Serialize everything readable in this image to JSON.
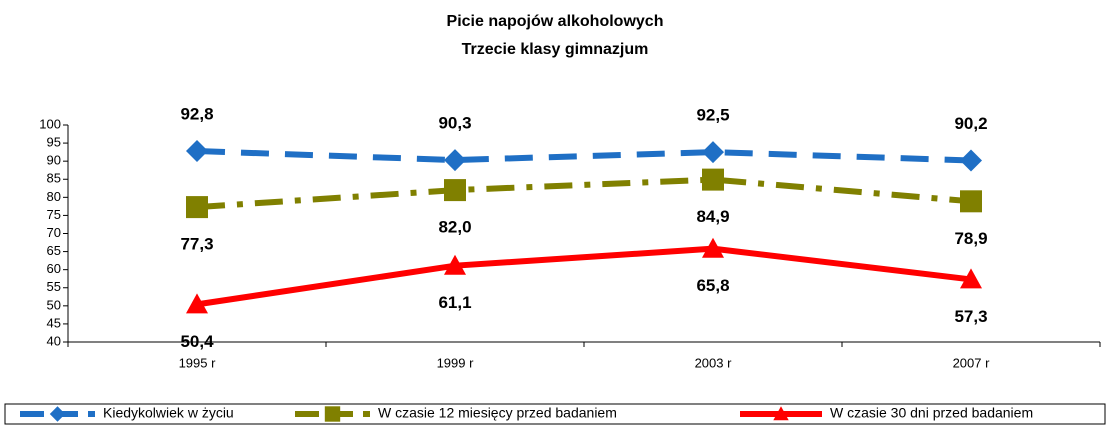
{
  "chart_data": {
    "type": "line",
    "title": "Picie napojów alkoholowych",
    "subtitle": "Trzecie klasy gimnazjum",
    "categories": [
      "1995 r",
      "1999 r",
      "2003 r",
      "2007 r"
    ],
    "ylim": [
      40,
      100
    ],
    "yticks": [
      40,
      45,
      50,
      55,
      60,
      65,
      70,
      75,
      80,
      85,
      90,
      95,
      100
    ],
    "legend": "bottom",
    "series": [
      {
        "name": "Kiedykolwiek w życiu",
        "color": "#1f6fc5",
        "style": "dashed",
        "marker": "diamond",
        "label_position": "above",
        "values": [
          92.8,
          90.3,
          92.5,
          90.2
        ],
        "value_labels": [
          "92,8",
          "90,3",
          "92,5",
          "90,2"
        ]
      },
      {
        "name": "W czasie 12 miesięcy przed badaniem",
        "color": "#808000",
        "style": "dashdot",
        "marker": "square",
        "label_position": "below",
        "values": [
          77.3,
          82.0,
          84.9,
          78.9
        ],
        "value_labels": [
          "77,3",
          "82,0",
          "84,9",
          "78,9"
        ]
      },
      {
        "name": "W czasie 30 dni przed badaniem",
        "color": "#ff0000",
        "style": "solid",
        "marker": "triangle",
        "label_position": "below",
        "values": [
          50.4,
          61.1,
          65.8,
          57.3
        ],
        "value_labels": [
          "50,4",
          "61,1",
          "65,8",
          "57,3"
        ]
      }
    ]
  }
}
